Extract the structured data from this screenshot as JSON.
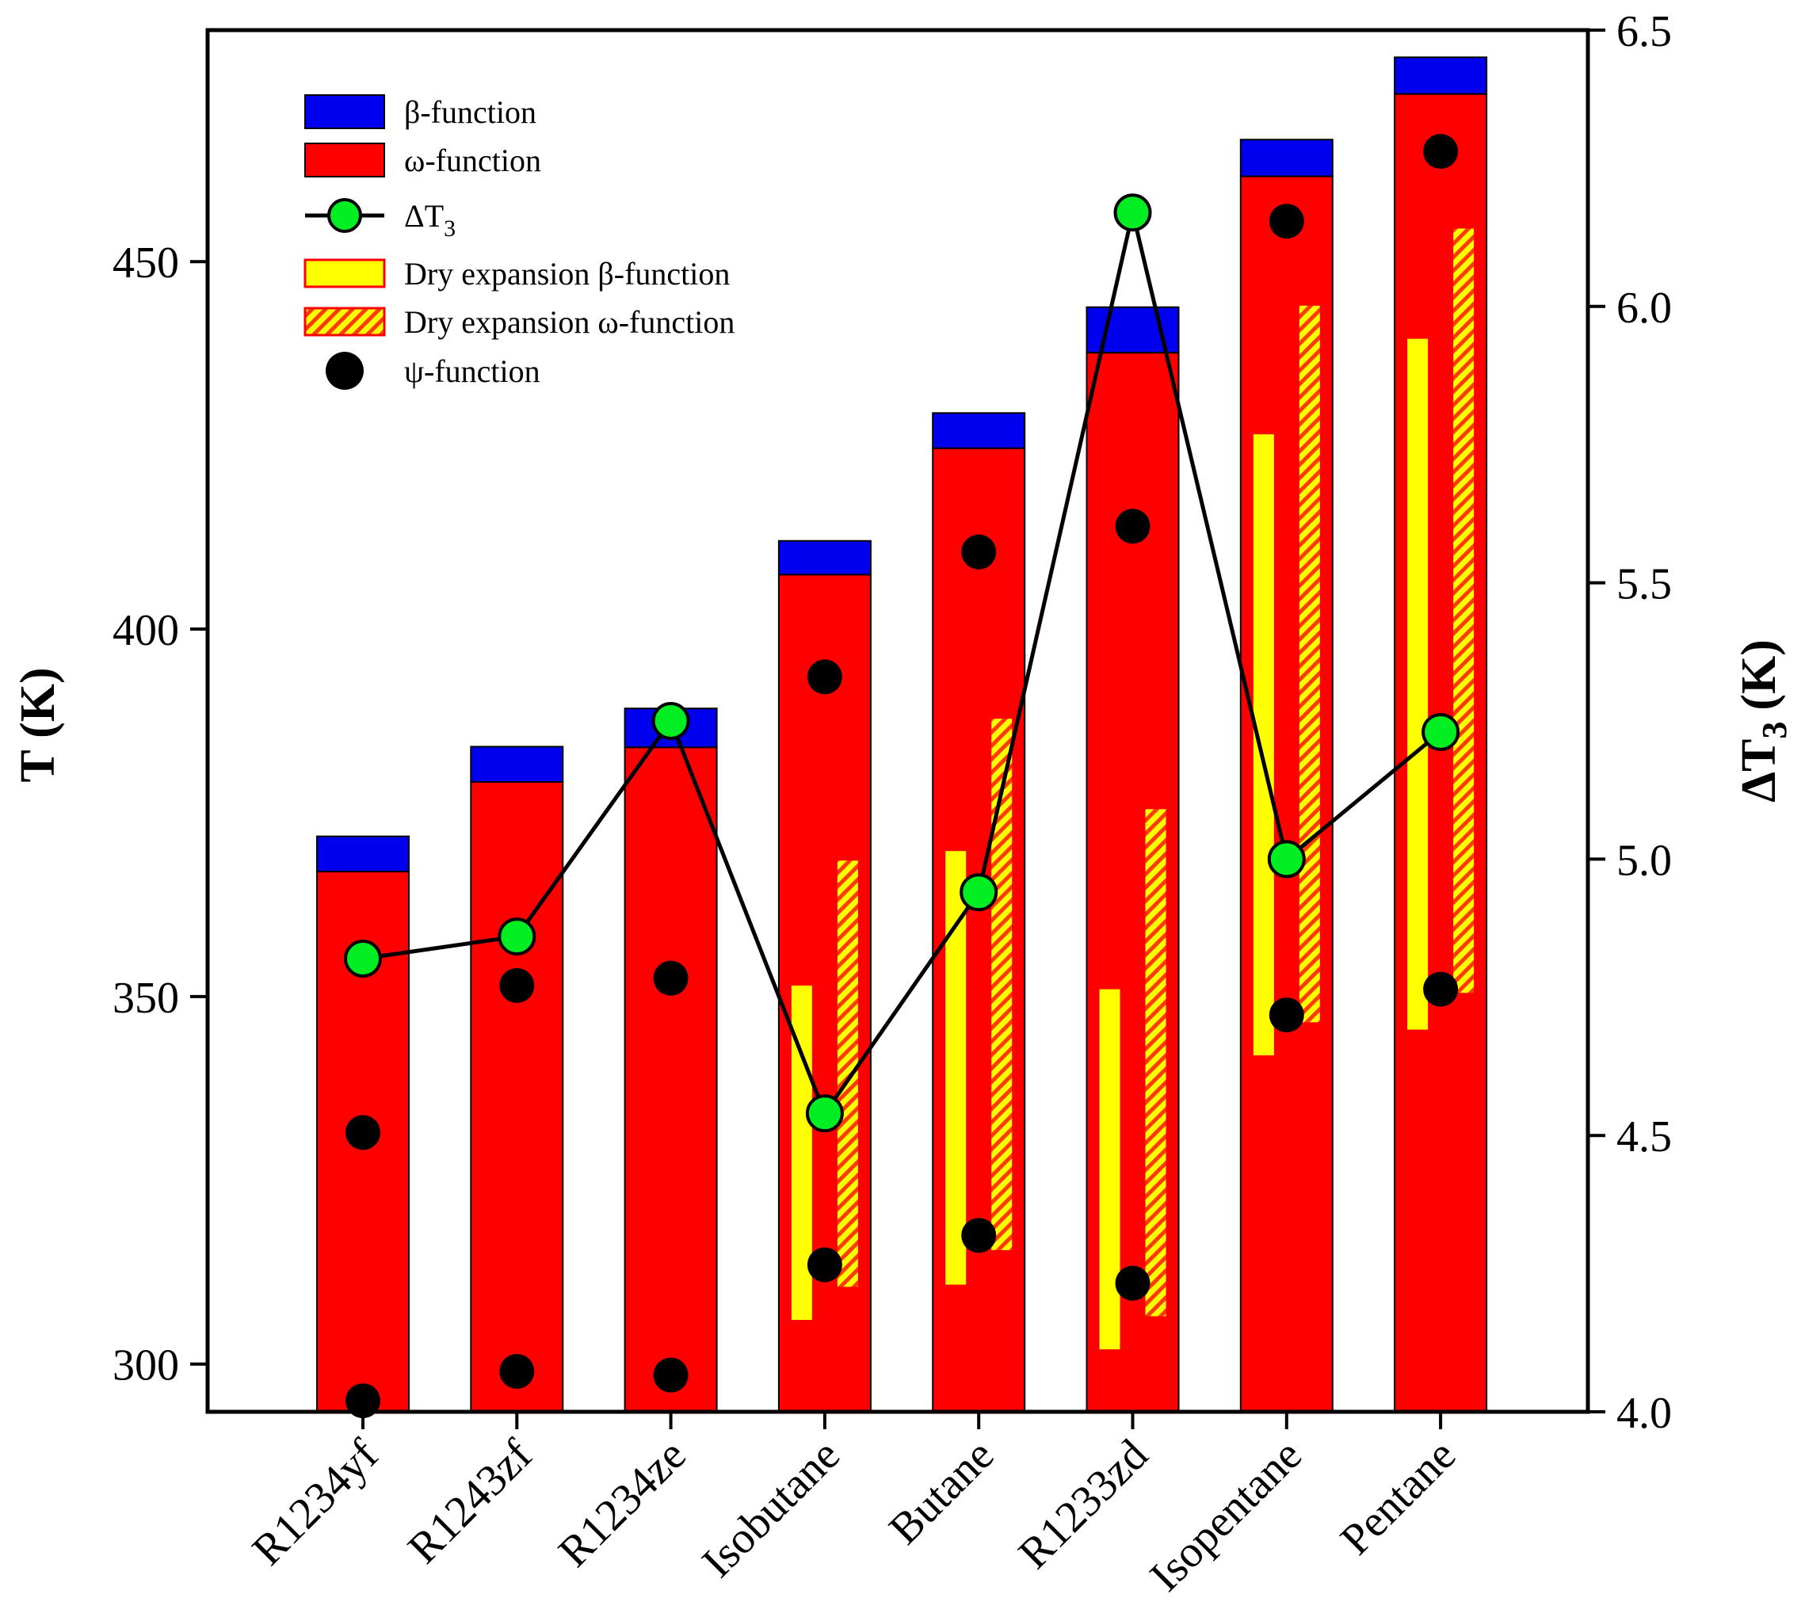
{
  "chart_data": {
    "type": "bar",
    "categories": [
      "R1234yf",
      "R1243zf",
      "R1234ze",
      "Isobutane",
      "Butane",
      "R1233zd",
      "Isopentane",
      "Pentane"
    ],
    "left_axis": {
      "label_main": "T",
      "label_unit": "(K)",
      "ylim": [
        293.5,
        481.5
      ],
      "ticks": [
        300,
        350,
        400,
        450
      ]
    },
    "right_axis": {
      "label_main": "ΔT",
      "label_sub": "3",
      "label_unit": "(K)",
      "ylim": [
        4.0,
        6.5
      ],
      "ticks": [
        "4.0",
        "4.5",
        "5.0",
        "5.5",
        "6.0",
        "6.5"
      ]
    },
    "series": [
      {
        "name": "β-function",
        "kind": "stack-top",
        "color": "#0000ee",
        "values": [
          371.8,
          384.0,
          389.2,
          412.0,
          429.4,
          443.8,
          466.6,
          477.8
        ]
      },
      {
        "name": "ω-function",
        "kind": "bar",
        "color": "#ff0000",
        "values": [
          367.0,
          379.2,
          383.9,
          407.4,
          424.6,
          437.6,
          461.6,
          472.8
        ]
      },
      {
        "name": "ΔT",
        "name_sub": "3",
        "kind": "line",
        "axis": "right",
        "color": "#00ee22",
        "values": [
          4.82,
          4.86,
          5.25,
          4.54,
          4.94,
          6.17,
          5.0,
          5.23
        ]
      },
      {
        "name": "Dry expansion β-function",
        "kind": "range",
        "color": "#ffff00",
        "ranges": [
          null,
          null,
          null,
          [
            306.0,
            351.5
          ],
          [
            310.8,
            369.8
          ],
          [
            302.0,
            351.0
          ],
          [
            342.0,
            426.5
          ],
          [
            345.5,
            439.5
          ]
        ]
      },
      {
        "name": "Dry expansion ω-function",
        "kind": "hatched-range",
        "color": "#ffff00",
        "ranges": [
          null,
          null,
          null,
          [
            310.5,
            368.5
          ],
          [
            315.5,
            387.8
          ],
          [
            306.5,
            375.5
          ],
          [
            346.5,
            444.0
          ],
          [
            350.5,
            454.5
          ]
        ]
      },
      {
        "name": "ψ-function",
        "kind": "scatter",
        "color": "#000000",
        "points": [
          [
            331.5,
            295.0
          ],
          [
            351.5,
            299.0
          ],
          [
            352.5,
            298.5
          ],
          [
            393.5,
            313.5
          ],
          [
            410.5,
            317.5
          ],
          [
            414.0,
            311.0
          ],
          [
            455.5,
            347.5
          ],
          [
            465.0,
            351.0
          ]
        ]
      }
    ],
    "legend_position": "top-left",
    "grid": false
  }
}
